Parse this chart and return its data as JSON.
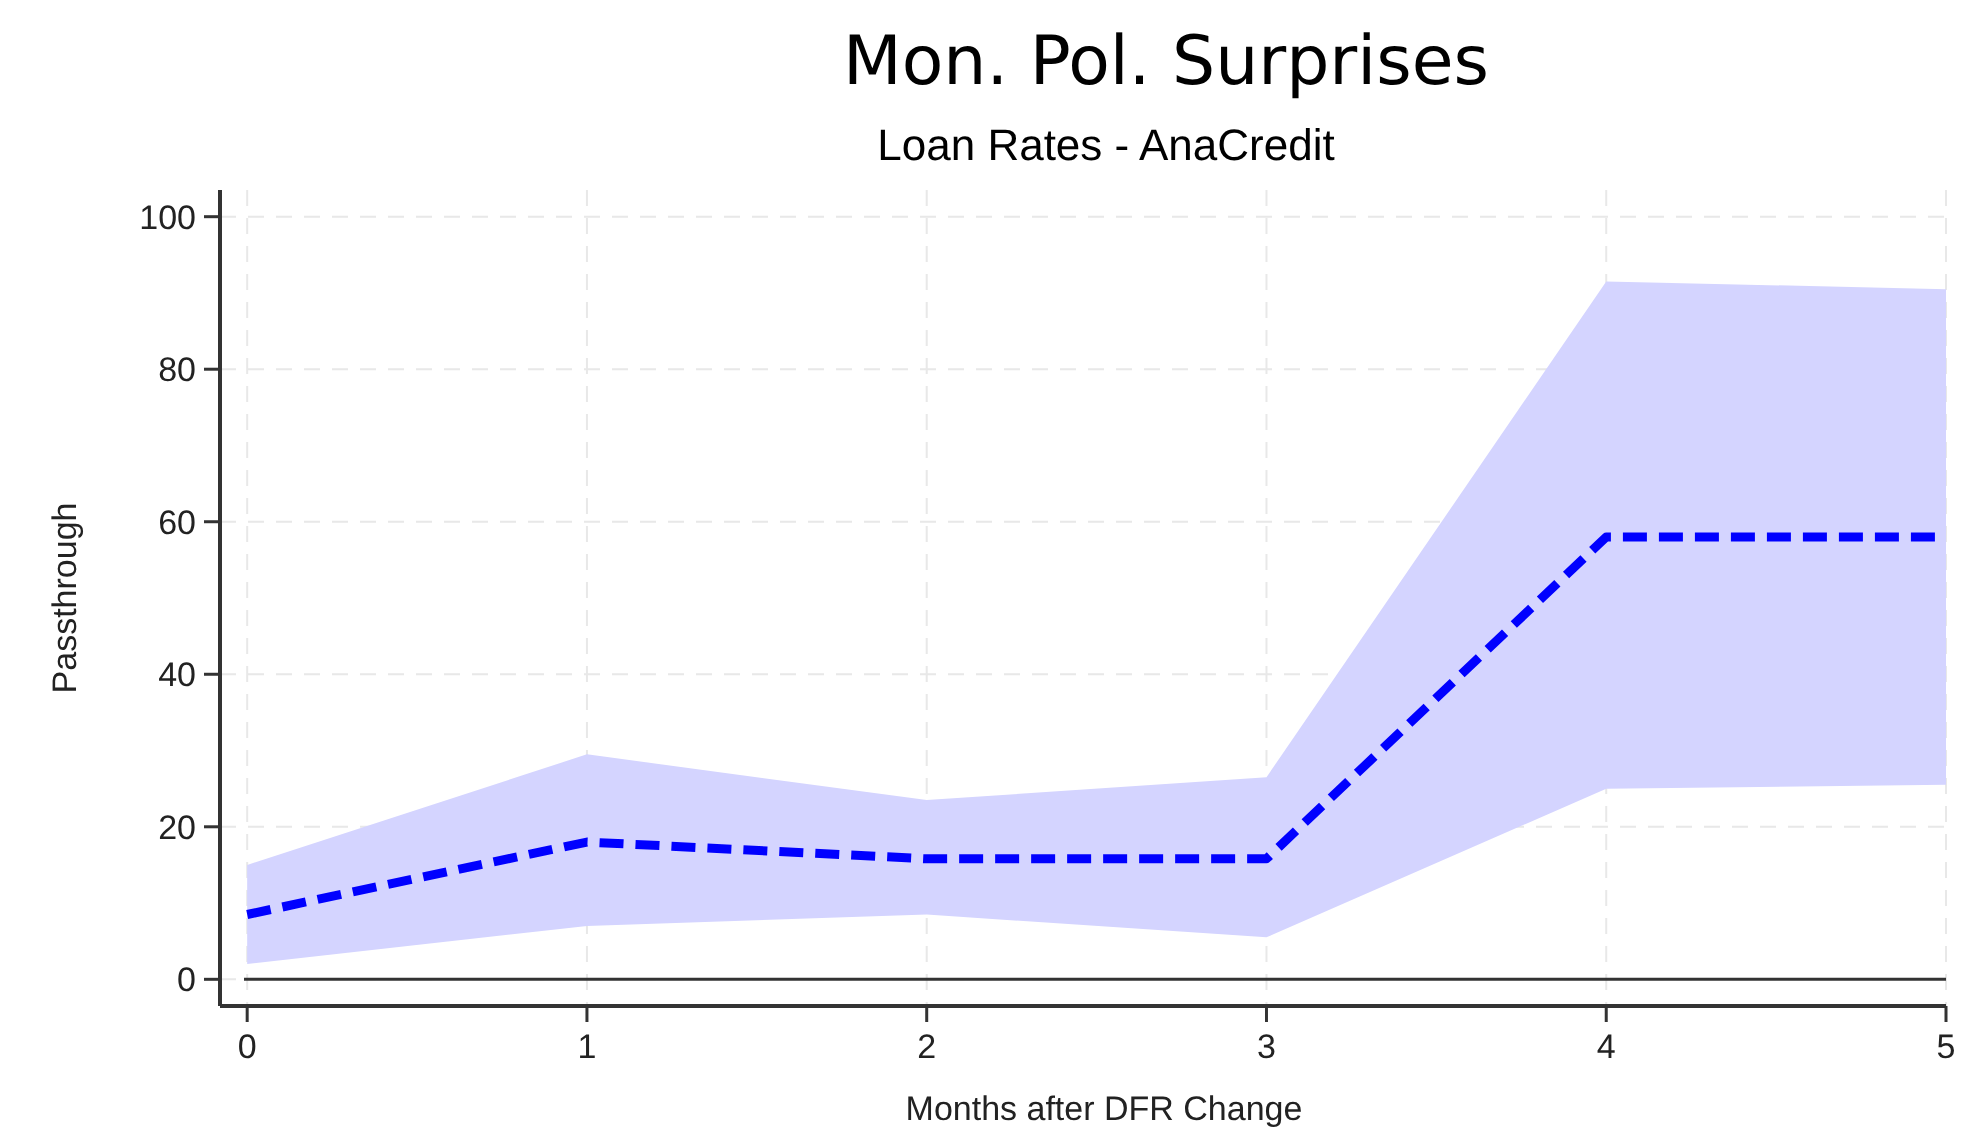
{
  "chart_data": {
    "type": "line",
    "title": "Mon. Pol. Surprises",
    "subtitle": "Loan Rates - AnaCredit",
    "xlabel": "Months after DFR Change",
    "ylabel": "Passthrough",
    "x": [
      0,
      1,
      2,
      3,
      4,
      5
    ],
    "series": [
      {
        "color": "#0000ff",
        "values": [
          8.5,
          18,
          15.8,
          15.8,
          58,
          58
        ],
        "lower": [
          2,
          7,
          8.5,
          5.5,
          25,
          25.5
        ],
        "upper": [
          15,
          29.5,
          23.5,
          26.5,
          91.5,
          90.5
        ]
      }
    ],
    "xlim": [
      -0.08,
      5
    ],
    "xticks": [
      0,
      1,
      2,
      3,
      4,
      5
    ],
    "ylim": [
      -3.5,
      103.5
    ],
    "yticks": [
      0,
      20,
      40,
      60,
      80,
      100
    ],
    "ref_lines": [
      {
        "axis": "y",
        "value": 0,
        "color": "#333333"
      }
    ],
    "grid": true,
    "line_style": "dashed"
  }
}
